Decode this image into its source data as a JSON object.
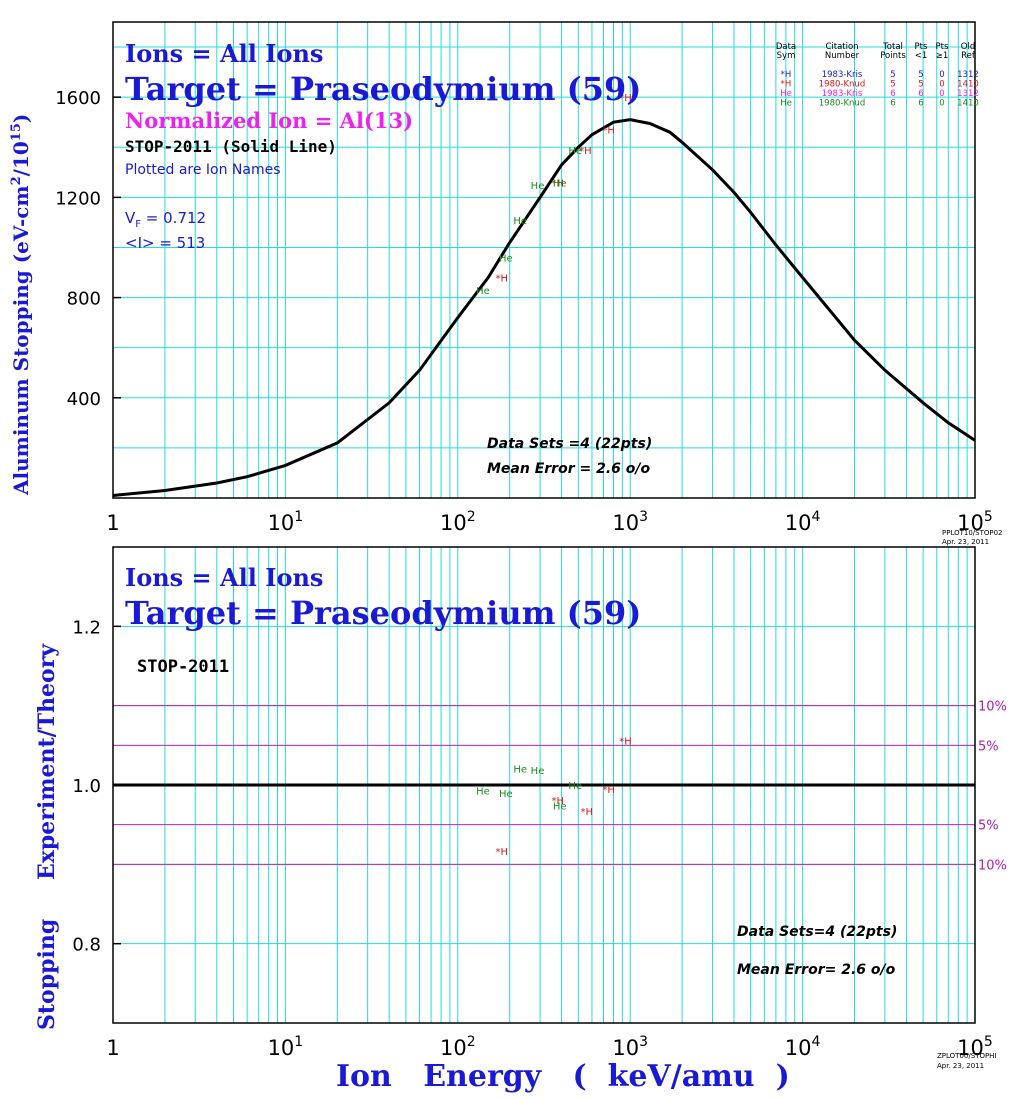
{
  "colors": {
    "grid": "#22dddd",
    "axis": "#000000",
    "blue": "#1a1ad6",
    "magenta": "#ee22ee",
    "red": "#d81818",
    "green": "#1a8a1a",
    "band": "#c020c0",
    "band_label": "#b01cb0"
  },
  "x_axis": {
    "ticks": [
      "1",
      "10",
      "10",
      "10",
      "10",
      "10"
    ],
    "exponents": [
      "",
      "1",
      "2",
      "3",
      "4",
      "5"
    ],
    "label": "Ion   Energy   (  keV/amu  )"
  },
  "top": {
    "ylabel": "Aluminum Stopping (eV-cm",
    "ylabel_sup1": "2",
    "ylabel_mid": "/10",
    "ylabel_sup2": "15",
    "ylabel_end": ")",
    "ions_line": "Ions = All Ions",
    "target_line": "Target = Praseodymium (59)",
    "normalized_line": "Normalized Ion = Al(13)",
    "stop_line": "STOP-2011 (Solid Line)",
    "plotted_line": "Plotted are Ion Names",
    "vf_label": "V",
    "vf_sub": "F",
    "vf_value": "  = 0.712",
    "i_line": "<I> = 513",
    "datasets_line": "Data Sets =4 (22pts)",
    "mean_error_line": "Mean Error =  2.6 o/o",
    "stamp_line1": "PPLOT10/STOP02",
    "stamp_line2": "Apr. 23, 2011",
    "legend": {
      "headers": [
        [
          "Data",
          "Sym"
        ],
        [
          "Citation",
          "Number"
        ],
        [
          "Total",
          "Points"
        ],
        [
          "Pts",
          "<1"
        ],
        [
          "Pts",
          "≥1"
        ],
        [
          "Old",
          "Ref"
        ]
      ],
      "rows": [
        {
          "sym": "*H",
          "citation": "1983-Kris",
          "total": "5",
          "lt1": "5",
          "ge1": "0",
          "ref": "1312",
          "color": "#1a1ad6"
        },
        {
          "sym": "*H",
          "citation": "1980-Knud",
          "total": "5",
          "lt1": "5",
          "ge1": "0",
          "ref": "1410",
          "color": "#d81818"
        },
        {
          "sym": "He",
          "citation": "1983-Kris",
          "total": "6",
          "lt1": "6",
          "ge1": "0",
          "ref": "1312",
          "color": "#ee22ee"
        },
        {
          "sym": "He",
          "citation": "1980-Knud",
          "total": "6",
          "lt1": "6",
          "ge1": "0",
          "ref": "1410",
          "color": "#1a8a1a"
        }
      ]
    }
  },
  "bottom": {
    "ylabel_part1": "Stopping",
    "ylabel_part2": "Experiment/Theory",
    "ions_line": "Ions = All Ions",
    "target_line": "Target = Praseodymium (59)",
    "stop_line": "STOP-2011",
    "datasets_line": "Data Sets=4 (22pts)",
    "mean_error_line": "Mean Error=  2.6 o/o",
    "stamp_line1": "ZPLOT00/STOPHI",
    "stamp_line2": "Apr. 23, 2011",
    "band_labels": [
      "10%",
      "5%",
      "5%",
      "10%"
    ]
  },
  "chart_data": [
    {
      "type": "line",
      "xscale": "log",
      "xlim": [
        1,
        100000
      ],
      "ylim": [
        0,
        1900
      ],
      "yticks": [
        400,
        800,
        1200,
        1600
      ],
      "curve": {
        "x": [
          1,
          2,
          4,
          6,
          10,
          20,
          40,
          60,
          100,
          150,
          200,
          300,
          400,
          500,
          600,
          800,
          1000,
          1300,
          1700,
          2000,
          3000,
          4000,
          5000,
          7000,
          10000,
          20000,
          30000,
          50000,
          70000,
          100000
        ],
        "y": [
          10,
          30,
          60,
          85,
          130,
          220,
          380,
          510,
          720,
          880,
          1020,
          1200,
          1330,
          1400,
          1450,
          1500,
          1510,
          1495,
          1460,
          1420,
          1310,
          1220,
          1140,
          1010,
          880,
          630,
          510,
          380,
          300,
          230
        ]
      },
      "points": [
        {
          "label": "*H",
          "color": "#d81818",
          "x": [
            180,
            380,
            550,
            750,
            940
          ],
          "y": [
            880,
            1260,
            1390,
            1470,
            1600
          ]
        },
        {
          "label": "He",
          "color": "#1a8a1a",
          "x": [
            140,
            190,
            230,
            290,
            390,
            480
          ],
          "y": [
            830,
            960,
            1110,
            1250,
            1260,
            1390
          ]
        }
      ]
    },
    {
      "type": "scatter",
      "xscale": "log",
      "xlim": [
        1,
        100000
      ],
      "ylim": [
        0.7,
        1.3
      ],
      "yticks": [
        0.8,
        1.0,
        1.2
      ],
      "reference_line": 1.0,
      "bands": [
        1.1,
        1.05,
        0.95,
        0.9
      ],
      "points": [
        {
          "label": "*H",
          "color": "#d81818",
          "x": [
            180,
            380,
            560,
            750,
            940
          ],
          "y": [
            0.917,
            0.981,
            0.967,
            0.995,
            1.056
          ]
        },
        {
          "label": "He",
          "color": "#1a8a1a",
          "x": [
            140,
            190,
            230,
            290,
            390,
            480
          ],
          "y": [
            0.993,
            0.99,
            1.021,
            1.019,
            0.974,
            1.0
          ]
        }
      ]
    }
  ]
}
